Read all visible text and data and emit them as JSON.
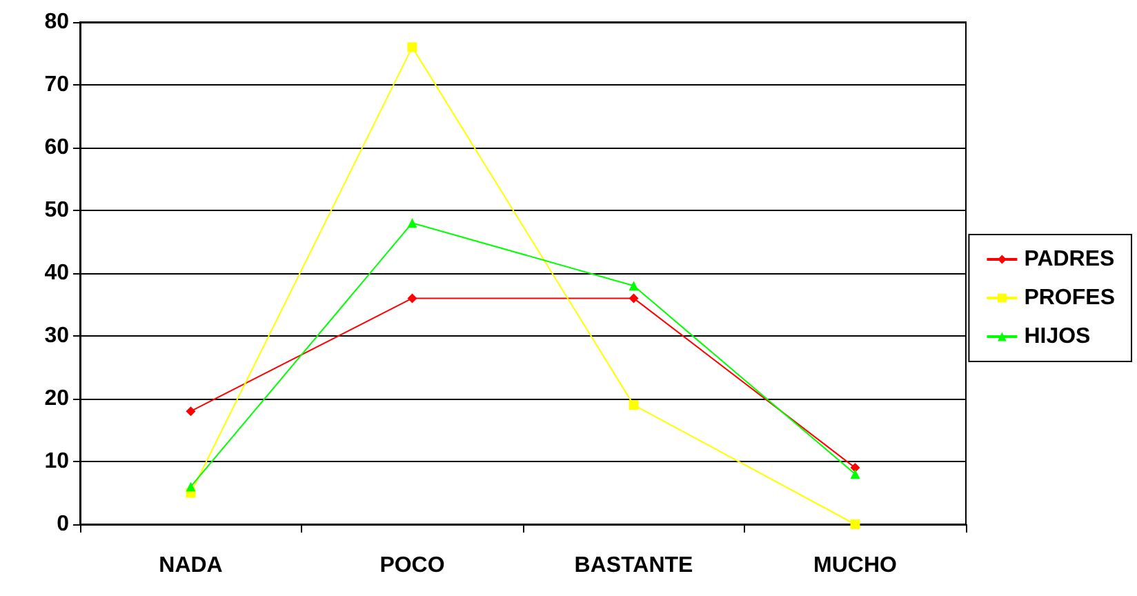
{
  "chart_data": {
    "type": "line",
    "categories": [
      "NADA",
      "POCO",
      "BASTANTE",
      "MUCHO"
    ],
    "series": [
      {
        "name": "PADRES",
        "color": "#ff0000",
        "marker": "diamond",
        "values": [
          18,
          36,
          36,
          9
        ]
      },
      {
        "name": "PROFES",
        "color": "#ffff00",
        "marker": "square",
        "values": [
          5,
          76,
          19,
          0
        ]
      },
      {
        "name": "HIJOS",
        "color": "#00ff00",
        "marker": "triangle",
        "values": [
          6,
          48,
          38,
          8
        ]
      }
    ],
    "ylim": [
      0,
      80
    ],
    "yticks": [
      0,
      10,
      20,
      30,
      40,
      50,
      60,
      70,
      80
    ],
    "grid": "y",
    "legend": "right"
  }
}
